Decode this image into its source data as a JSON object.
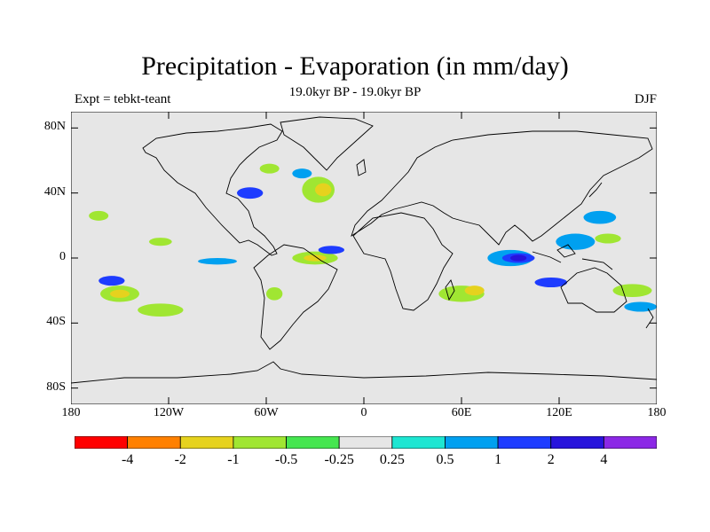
{
  "header": {
    "title": "Precipitation - Evaporation (in mm/day)",
    "subtitle": "19.0kyr BP - 19.0kyr BP",
    "left_label": "Expt = tebkt-teant",
    "right_label": "DJF"
  },
  "map": {
    "lon_range": [
      -180,
      180
    ],
    "lat_range": [
      -90,
      90
    ],
    "lat_ticks": [
      {
        "lat": 80,
        "label": "80N"
      },
      {
        "lat": 40,
        "label": "40N"
      },
      {
        "lat": 0,
        "label": "0"
      },
      {
        "lat": -40,
        "label": "40S"
      },
      {
        "lat": -80,
        "label": "80S"
      }
    ],
    "lon_ticks": [
      {
        "lon": -180,
        "label": "180"
      },
      {
        "lon": -120,
        "label": "120W"
      },
      {
        "lon": -60,
        "label": "60W"
      },
      {
        "lon": 0,
        "label": "0"
      },
      {
        "lon": 60,
        "label": "60E"
      },
      {
        "lon": 120,
        "label": "120E"
      },
      {
        "lon": 180,
        "label": "180"
      }
    ],
    "background_color": "#e6e6e6"
  },
  "colorbar": {
    "colors": [
      "#ff0000",
      "#ff8000",
      "#e6d21e",
      "#a0e632",
      "#46e650",
      "#e6e6e6",
      "#1ee6d2",
      "#00a0f0",
      "#1e3cff",
      "#2814dc",
      "#8c28e6"
    ],
    "labels": [
      "-4",
      "-2",
      "-1",
      "-0.5",
      "-0.25",
      "0.25",
      "0.5",
      "1",
      "2",
      "4"
    ]
  },
  "anomalies": [
    {
      "lon": -150,
      "lat": -22,
      "rx": 12,
      "ry": 5,
      "level": "-0.5"
    },
    {
      "lon": -150,
      "lat": -22,
      "rx": 6,
      "ry": 2.5,
      "level": "-1"
    },
    {
      "lon": -125,
      "lat": -32,
      "rx": 14,
      "ry": 4,
      "level": "-0.5"
    },
    {
      "lon": -163,
      "lat": 26,
      "rx": 6,
      "ry": 3,
      "level": "-0.5"
    },
    {
      "lon": -125,
      "lat": 10,
      "rx": 7,
      "ry": 2.5,
      "level": "-0.5"
    },
    {
      "lon": -155,
      "lat": -14,
      "rx": 8,
      "ry": 3,
      "level": "1"
    },
    {
      "lon": -70,
      "lat": 40,
      "rx": 8,
      "ry": 3.5,
      "level": "1"
    },
    {
      "lon": -58,
      "lat": 55,
      "rx": 6,
      "ry": 3,
      "level": "-0.5"
    },
    {
      "lon": -28,
      "lat": 42,
      "rx": 10,
      "ry": 8,
      "level": "-0.5"
    },
    {
      "lon": -25,
      "lat": 42,
      "rx": 5,
      "ry": 4,
      "level": "-1"
    },
    {
      "lon": -38,
      "lat": 52,
      "rx": 6,
      "ry": 3,
      "level": "0.5"
    },
    {
      "lon": -30,
      "lat": 0,
      "rx": 14,
      "ry": 4,
      "level": "-0.5"
    },
    {
      "lon": -30,
      "lat": 0,
      "rx": 7,
      "ry": 2,
      "level": "-1"
    },
    {
      "lon": -90,
      "lat": -2,
      "rx": 12,
      "ry": 2,
      "level": "0.5"
    },
    {
      "lon": -55,
      "lat": -22,
      "rx": 5,
      "ry": 4,
      "level": "-0.5"
    },
    {
      "lon": -20,
      "lat": 5,
      "rx": 8,
      "ry": 2.5,
      "level": "1"
    },
    {
      "lon": 60,
      "lat": -22,
      "rx": 14,
      "ry": 5,
      "level": "-0.5"
    },
    {
      "lon": 68,
      "lat": -20,
      "rx": 6,
      "ry": 3,
      "level": "-1"
    },
    {
      "lon": 90,
      "lat": 0,
      "rx": 14,
      "ry": 5,
      "level": "0.5"
    },
    {
      "lon": 95,
      "lat": 0,
      "rx": 10,
      "ry": 3,
      "level": "1"
    },
    {
      "lon": 95,
      "lat": 0,
      "rx": 5,
      "ry": 2,
      "level": "2"
    },
    {
      "lon": 130,
      "lat": 10,
      "rx": 12,
      "ry": 5,
      "level": "0.5"
    },
    {
      "lon": 145,
      "lat": 25,
      "rx": 10,
      "ry": 4,
      "level": "0.5"
    },
    {
      "lon": 150,
      "lat": 12,
      "rx": 8,
      "ry": 3,
      "level": "-0.5"
    },
    {
      "lon": 165,
      "lat": -20,
      "rx": 12,
      "ry": 4,
      "level": "-0.5"
    },
    {
      "lon": 170,
      "lat": -30,
      "rx": 10,
      "ry": 3,
      "level": "0.5"
    },
    {
      "lon": 115,
      "lat": -15,
      "rx": 10,
      "ry": 3,
      "level": "1"
    }
  ]
}
